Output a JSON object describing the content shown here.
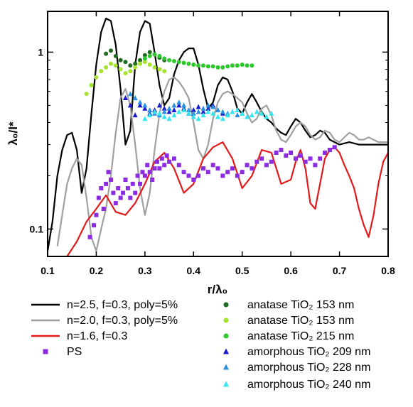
{
  "chart_data": {
    "type": "line",
    "title": "",
    "xlabel": "r/λ₀",
    "ylabel": "λ₀/l*",
    "xlim": [
      0.1,
      0.8
    ],
    "ylim": [
      0.07,
      1.7
    ],
    "yscale": "log",
    "grid": false,
    "legend_placement": "below",
    "x_ticks": [
      0.1,
      0.2,
      0.3,
      0.4,
      0.5,
      0.6,
      0.7,
      0.8
    ],
    "x_tick_labels": [
      "0.1",
      "0.2",
      "0.3",
      "0.4",
      "0.5",
      "0.6",
      "0.7",
      "0.8"
    ],
    "y_ticks": [
      0.1,
      1
    ],
    "y_tick_labels": [
      "0.1",
      "1"
    ],
    "series": [
      {
        "name": "n=2.5, f=0.3, poly=5%",
        "kind": "line",
        "color": "#000000",
        "x": [
          0.1,
          0.11,
          0.12,
          0.13,
          0.14,
          0.15,
          0.16,
          0.17,
          0.18,
          0.19,
          0.2,
          0.21,
          0.22,
          0.23,
          0.24,
          0.25,
          0.26,
          0.27,
          0.28,
          0.29,
          0.3,
          0.31,
          0.32,
          0.33,
          0.34,
          0.35,
          0.36,
          0.37,
          0.38,
          0.39,
          0.4,
          0.41,
          0.42,
          0.43,
          0.44,
          0.45,
          0.46,
          0.47,
          0.48,
          0.49,
          0.5,
          0.51,
          0.52,
          0.53,
          0.54,
          0.55,
          0.56,
          0.57,
          0.58,
          0.59,
          0.6,
          0.61,
          0.62,
          0.63,
          0.64,
          0.65,
          0.66,
          0.67,
          0.68,
          0.69,
          0.7,
          0.72,
          0.74,
          0.76,
          0.78,
          0.8
        ],
        "y": [
          0.075,
          0.11,
          0.2,
          0.28,
          0.34,
          0.35,
          0.28,
          0.16,
          0.22,
          0.45,
          0.85,
          1.3,
          1.55,
          1.5,
          1.1,
          0.62,
          0.3,
          0.36,
          0.85,
          1.3,
          1.5,
          1.45,
          1.0,
          0.65,
          0.5,
          0.55,
          0.75,
          0.9,
          1.0,
          1.05,
          1.05,
          0.85,
          0.62,
          0.48,
          0.52,
          0.65,
          0.72,
          0.7,
          0.6,
          0.48,
          0.45,
          0.52,
          0.58,
          0.52,
          0.46,
          0.42,
          0.4,
          0.37,
          0.35,
          0.34,
          0.38,
          0.42,
          0.4,
          0.36,
          0.33,
          0.34,
          0.36,
          0.35,
          0.32,
          0.31,
          0.3,
          0.31,
          0.3,
          0.3,
          0.3,
          0.3
        ]
      },
      {
        "name": "n=2.0, f=0.3, poly=5%",
        "kind": "line",
        "color": "#a0a0a0",
        "x": [
          0.12,
          0.13,
          0.14,
          0.15,
          0.16,
          0.17,
          0.18,
          0.19,
          0.2,
          0.21,
          0.22,
          0.23,
          0.24,
          0.25,
          0.26,
          0.27,
          0.28,
          0.29,
          0.3,
          0.31,
          0.32,
          0.33,
          0.34,
          0.35,
          0.36,
          0.37,
          0.38,
          0.39,
          0.4,
          0.41,
          0.42,
          0.43,
          0.44,
          0.45,
          0.46,
          0.47,
          0.48,
          0.49,
          0.5,
          0.51,
          0.52,
          0.53,
          0.54,
          0.55,
          0.56,
          0.57,
          0.58,
          0.59,
          0.6,
          0.61,
          0.62,
          0.63,
          0.64,
          0.65,
          0.66,
          0.67,
          0.68,
          0.69,
          0.7,
          0.71,
          0.72,
          0.73,
          0.74,
          0.75,
          0.76,
          0.77,
          0.78,
          0.79,
          0.8
        ],
        "y": [
          0.08,
          0.12,
          0.18,
          0.22,
          0.25,
          0.23,
          0.15,
          0.09,
          0.075,
          0.1,
          0.13,
          0.2,
          0.35,
          0.55,
          0.62,
          0.5,
          0.3,
          0.17,
          0.12,
          0.16,
          0.28,
          0.45,
          0.6,
          0.7,
          0.72,
          0.68,
          0.62,
          0.55,
          0.4,
          0.28,
          0.25,
          0.3,
          0.42,
          0.52,
          0.58,
          0.6,
          0.58,
          0.55,
          0.52,
          0.45,
          0.4,
          0.42,
          0.48,
          0.5,
          0.44,
          0.36,
          0.32,
          0.31,
          0.34,
          0.38,
          0.4,
          0.38,
          0.34,
          0.32,
          0.33,
          0.36,
          0.35,
          0.32,
          0.31,
          0.33,
          0.35,
          0.34,
          0.32,
          0.32,
          0.33,
          0.32,
          0.31,
          0.31,
          0.31
        ]
      },
      {
        "name": "n=1.6, f=0.3",
        "kind": "line",
        "color": "#e31a1c",
        "x": [
          0.14,
          0.16,
          0.18,
          0.2,
          0.22,
          0.24,
          0.26,
          0.28,
          0.3,
          0.32,
          0.34,
          0.36,
          0.38,
          0.4,
          0.42,
          0.44,
          0.46,
          0.48,
          0.5,
          0.52,
          0.54,
          0.56,
          0.58,
          0.6,
          0.61,
          0.62,
          0.63,
          0.64,
          0.65,
          0.66,
          0.67,
          0.68,
          0.69,
          0.7,
          0.71,
          0.72,
          0.73,
          0.74,
          0.75,
          0.76,
          0.77,
          0.78,
          0.79,
          0.8
        ],
        "y": [
          0.07,
          0.085,
          0.11,
          0.13,
          0.155,
          0.125,
          0.12,
          0.14,
          0.18,
          0.24,
          0.27,
          0.22,
          0.16,
          0.18,
          0.25,
          0.29,
          0.31,
          0.25,
          0.17,
          0.2,
          0.28,
          0.27,
          0.18,
          0.19,
          0.24,
          0.28,
          0.22,
          0.14,
          0.13,
          0.18,
          0.25,
          0.28,
          0.29,
          0.27,
          0.23,
          0.2,
          0.17,
          0.13,
          0.105,
          0.09,
          0.12,
          0.18,
          0.24,
          0.27
        ]
      },
      {
        "name": "PS",
        "kind": "scatter",
        "marker": "square",
        "color": "#8b2be2",
        "x": [
          0.187,
          0.195,
          0.2,
          0.205,
          0.21,
          0.215,
          0.22,
          0.225,
          0.23,
          0.235,
          0.24,
          0.245,
          0.25,
          0.255,
          0.26,
          0.265,
          0.27,
          0.275,
          0.28,
          0.285,
          0.29,
          0.295,
          0.3,
          0.305,
          0.31,
          0.315,
          0.32,
          0.325,
          0.33,
          0.335,
          0.34,
          0.345,
          0.35,
          0.36,
          0.37,
          0.38,
          0.39,
          0.4,
          0.41,
          0.42,
          0.43,
          0.44,
          0.45,
          0.46,
          0.47,
          0.48,
          0.49,
          0.5,
          0.51,
          0.52,
          0.53,
          0.54,
          0.55,
          0.56,
          0.57,
          0.58,
          0.59,
          0.6,
          0.61,
          0.62,
          0.63,
          0.64,
          0.65,
          0.66,
          0.67,
          0.68,
          0.69
        ],
        "y": [
          0.09,
          0.105,
          0.12,
          0.15,
          0.17,
          0.13,
          0.18,
          0.21,
          0.19,
          0.16,
          0.14,
          0.17,
          0.15,
          0.16,
          0.19,
          0.17,
          0.15,
          0.18,
          0.16,
          0.2,
          0.18,
          0.21,
          0.2,
          0.23,
          0.21,
          0.19,
          0.22,
          0.24,
          0.22,
          0.25,
          0.23,
          0.26,
          0.24,
          0.25,
          0.23,
          0.21,
          0.2,
          0.19,
          0.2,
          0.22,
          0.21,
          0.23,
          0.22,
          0.2,
          0.21,
          0.22,
          0.2,
          0.21,
          0.23,
          0.22,
          0.24,
          0.25,
          0.23,
          0.24,
          0.27,
          0.28,
          0.26,
          0.27,
          0.25,
          0.26,
          0.24,
          0.25,
          0.23,
          0.25,
          0.27,
          0.28,
          0.29
        ]
      },
      {
        "name": "anatase TiO₂ 153 nm",
        "kind": "scatter",
        "marker": "circle",
        "color": "#1f6b1f",
        "x": [
          0.22,
          0.23,
          0.24,
          0.25,
          0.26,
          0.27,
          0.28,
          0.29,
          0.3,
          0.31,
          0.32,
          0.33,
          0.34
        ],
        "y": [
          0.98,
          1.02,
          0.95,
          0.9,
          0.88,
          0.84,
          0.86,
          0.9,
          0.96,
          1.0,
          0.97,
          0.93,
          0.9
        ]
      },
      {
        "name": "anatase TiO₂ 153 nm",
        "kind": "scatter",
        "marker": "circle",
        "color": "#a6e22e",
        "x": [
          0.18,
          0.19,
          0.2,
          0.21,
          0.22,
          0.23,
          0.24,
          0.25,
          0.26,
          0.27,
          0.28,
          0.29,
          0.3,
          0.31,
          0.32,
          0.33,
          0.34
        ],
        "y": [
          0.58,
          0.65,
          0.72,
          0.78,
          0.82,
          0.86,
          0.84,
          0.8,
          0.76,
          0.78,
          0.82,
          0.86,
          0.88,
          0.85,
          0.82,
          0.8,
          0.78
        ]
      },
      {
        "name": "anatase TiO₂ 215 nm",
        "kind": "scatter",
        "marker": "circle",
        "color": "#2ec82e",
        "x": [
          0.3,
          0.31,
          0.32,
          0.33,
          0.34,
          0.35,
          0.36,
          0.37,
          0.38,
          0.39,
          0.4,
          0.41,
          0.42,
          0.43,
          0.44,
          0.45,
          0.46,
          0.47,
          0.48,
          0.49,
          0.5,
          0.51,
          0.52
        ],
        "y": [
          0.92,
          0.95,
          0.97,
          0.95,
          0.92,
          0.9,
          0.89,
          0.88,
          0.87,
          0.86,
          0.85,
          0.84,
          0.84,
          0.83,
          0.83,
          0.82,
          0.82,
          0.83,
          0.84,
          0.84,
          0.85,
          0.84,
          0.84
        ]
      },
      {
        "name": "amorphous TiO₂ 209 nm",
        "kind": "scatter",
        "marker": "triangle",
        "color": "#1a1acd",
        "x": [
          0.26,
          0.27,
          0.28,
          0.29,
          0.3,
          0.31,
          0.32,
          0.33,
          0.34,
          0.35,
          0.36,
          0.37,
          0.38,
          0.39,
          0.4,
          0.41,
          0.42,
          0.43,
          0.44,
          0.45,
          0.46
        ],
        "y": [
          0.55,
          0.5,
          0.44,
          0.5,
          0.48,
          0.45,
          0.47,
          0.5,
          0.48,
          0.46,
          0.47,
          0.5,
          0.48,
          0.45,
          0.47,
          0.49,
          0.46,
          0.48,
          0.5,
          0.47,
          0.45
        ]
      },
      {
        "name": "amorphous TiO₂ 228 nm",
        "kind": "scatter",
        "marker": "triangle",
        "color": "#2b8fe0",
        "x": [
          0.27,
          0.28,
          0.29,
          0.3,
          0.31,
          0.32,
          0.33,
          0.34,
          0.35,
          0.36,
          0.37,
          0.38,
          0.39,
          0.4,
          0.41,
          0.42,
          0.43,
          0.44,
          0.45,
          0.46,
          0.47,
          0.48,
          0.49,
          0.5
        ],
        "y": [
          0.58,
          0.55,
          0.52,
          0.5,
          0.47,
          0.45,
          0.44,
          0.46,
          0.48,
          0.5,
          0.52,
          0.5,
          0.47,
          0.45,
          0.46,
          0.48,
          0.5,
          0.49,
          0.47,
          0.46,
          0.45,
          0.46,
          0.44,
          0.45
        ]
      },
      {
        "name": "amorphous TiO₂ 240 nm",
        "kind": "scatter",
        "marker": "triangle",
        "color": "#33e6f0",
        "x": [
          0.3,
          0.31,
          0.32,
          0.33,
          0.34,
          0.35,
          0.36,
          0.37,
          0.38,
          0.39,
          0.4,
          0.41,
          0.42,
          0.43,
          0.44,
          0.45,
          0.46,
          0.47,
          0.48,
          0.49,
          0.5,
          0.51,
          0.52,
          0.53,
          0.54,
          0.55,
          0.56
        ],
        "y": [
          0.42,
          0.44,
          0.46,
          0.45,
          0.43,
          0.42,
          0.44,
          0.46,
          0.47,
          0.45,
          0.43,
          0.42,
          0.44,
          0.46,
          0.45,
          0.43,
          0.42,
          0.44,
          0.46,
          0.47,
          0.45,
          0.43,
          0.44,
          0.46,
          0.45,
          0.43,
          0.45
        ]
      }
    ]
  }
}
